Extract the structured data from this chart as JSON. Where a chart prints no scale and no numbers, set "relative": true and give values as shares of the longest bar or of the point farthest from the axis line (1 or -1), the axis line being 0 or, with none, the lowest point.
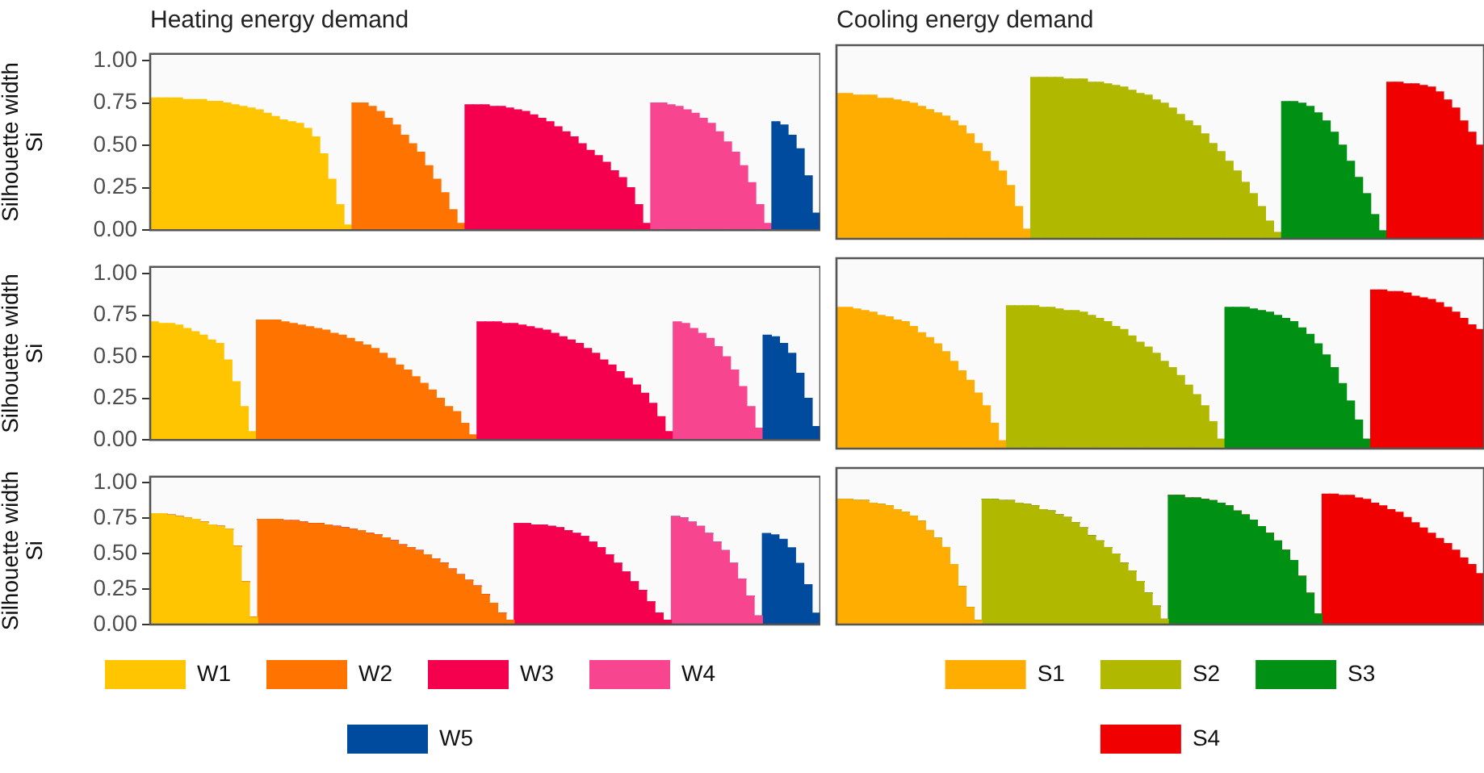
{
  "chart_data": [
    {
      "type": "bar",
      "title": "Heating energy demand",
      "ylabel": "Silhouette width\nSi",
      "tick_labels": "y",
      "ylim": [
        0,
        1.04
      ],
      "yticks": [
        {
          "value": 0,
          "label": "0.00"
        },
        {
          "value": 0.25,
          "label": "0.25"
        },
        {
          "value": 0.5,
          "label": "0.50"
        },
        {
          "value": 0.75,
          "label": "0.75"
        },
        {
          "value": 1,
          "label": "1.00"
        }
      ],
      "categories": [
        null,
        null,
        null,
        null,
        null,
        null,
        null,
        null,
        null,
        null,
        null,
        null,
        null,
        null,
        null,
        null,
        null,
        null,
        null,
        null,
        null,
        null,
        null,
        null,
        null,
        null,
        null,
        null,
        null,
        null,
        null,
        null,
        null,
        null,
        null,
        null,
        null,
        null,
        null,
        null,
        null,
        null,
        null,
        null,
        null,
        null,
        null,
        null,
        null,
        null,
        null,
        null,
        null,
        null,
        null,
        null,
        null,
        null,
        null,
        null,
        null,
        null,
        null,
        null,
        null,
        null,
        null,
        null,
        null,
        null,
        null,
        null,
        null,
        null,
        null,
        null,
        null,
        null,
        null,
        null,
        null,
        null,
        null
      ],
      "values": [
        0.78,
        0.78,
        0.78,
        0.78,
        0.77,
        0.77,
        0.77,
        0.76,
        0.76,
        0.75,
        0.74,
        0.73,
        0.72,
        0.71,
        0.69,
        0.67,
        0.65,
        0.64,
        0.63,
        0.6,
        0.55,
        0.45,
        0.3,
        0.15,
        0.03,
        0.75,
        0.75,
        0.73,
        0.7,
        0.66,
        0.62,
        0.56,
        0.51,
        0.46,
        0.38,
        0.3,
        0.22,
        0.12,
        0.04,
        0.74,
        0.74,
        0.74,
        0.73,
        0.73,
        0.72,
        0.71,
        0.7,
        0.68,
        0.66,
        0.64,
        0.61,
        0.58,
        0.55,
        0.51,
        0.47,
        0.44,
        0.4,
        0.35,
        0.31,
        0.25,
        0.15,
        0.04,
        0.75,
        0.75,
        0.74,
        0.73,
        0.71,
        0.69,
        0.66,
        0.63,
        0.58,
        0.52,
        0.46,
        0.38,
        0.28,
        0.15,
        0.04,
        0.64,
        0.62,
        0.56,
        0.48,
        0.32,
        0.1
      ],
      "colors": [
        "#ffc500",
        "#ffc500",
        "#ffc500",
        "#ffc500",
        "#ffc500",
        "#ffc500",
        "#ffc500",
        "#ffc500",
        "#ffc500",
        "#ffc500",
        "#ffc500",
        "#ffc500",
        "#ffc500",
        "#ffc500",
        "#ffc500",
        "#ffc500",
        "#ffc500",
        "#ffc500",
        "#ffc500",
        "#ffc500",
        "#ffc500",
        "#ffc500",
        "#ffc500",
        "#ffc500",
        "#ffc500",
        "#ff7400",
        "#ff7400",
        "#ff7400",
        "#ff7400",
        "#ff7400",
        "#ff7400",
        "#ff7400",
        "#ff7400",
        "#ff7400",
        "#ff7400",
        "#ff7400",
        "#ff7400",
        "#ff7400",
        "#ff7400",
        "#f5004f",
        "#f5004f",
        "#f5004f",
        "#f5004f",
        "#f5004f",
        "#f5004f",
        "#f5004f",
        "#f5004f",
        "#f5004f",
        "#f5004f",
        "#f5004f",
        "#f5004f",
        "#f5004f",
        "#f5004f",
        "#f5004f",
        "#f5004f",
        "#f5004f",
        "#f5004f",
        "#f5004f",
        "#f5004f",
        "#f5004f",
        "#f5004f",
        "#f5004f",
        "#f74590",
        "#f74590",
        "#f74590",
        "#f74590",
        "#f74590",
        "#f74590",
        "#f74590",
        "#f74590",
        "#f74590",
        "#f74590",
        "#f74590",
        "#f74590",
        "#f74590",
        "#f74590",
        "#f74590",
        "#004b9e",
        "#004b9e",
        "#004b9e",
        "#004b9e",
        "#004b9e",
        "#004b9e"
      ]
    },
    {
      "type": "bar",
      "title": "Cooling energy demand",
      "tick_labels": false,
      "relative": true,
      "categories": [
        null,
        null,
        null,
        null,
        null,
        null,
        null,
        null,
        null,
        null,
        null,
        null,
        null,
        null,
        null,
        null,
        null,
        null,
        null,
        null,
        null,
        null,
        null,
        null,
        null,
        null,
        null,
        null,
        null,
        null,
        null,
        null,
        null,
        null,
        null,
        null,
        null,
        null,
        null,
        null,
        null,
        null,
        null,
        null,
        null,
        null,
        null,
        null,
        null,
        null,
        null,
        null,
        null,
        null,
        null,
        null,
        null,
        null,
        null,
        null,
        null,
        null,
        null,
        null,
        null,
        null,
        null,
        null,
        null,
        null,
        null,
        null,
        null,
        null,
        null,
        null,
        null,
        null,
        null,
        null
      ],
      "values": [
        0.9,
        0.9,
        0.89,
        0.89,
        0.89,
        0.87,
        0.87,
        0.86,
        0.85,
        0.84,
        0.82,
        0.8,
        0.78,
        0.76,
        0.73,
        0.7,
        0.65,
        0.59,
        0.54,
        0.48,
        0.42,
        0.33,
        0.2,
        0.06,
        1,
        1,
        1,
        1,
        0.99,
        0.99,
        0.99,
        0.97,
        0.97,
        0.96,
        0.95,
        0.94,
        0.92,
        0.9,
        0.89,
        0.86,
        0.84,
        0.81,
        0.77,
        0.73,
        0.7,
        0.65,
        0.59,
        0.54,
        0.48,
        0.42,
        0.35,
        0.28,
        0.2,
        0.11,
        0.04,
        0.85,
        0.85,
        0.84,
        0.82,
        0.78,
        0.73,
        0.66,
        0.58,
        0.48,
        0.38,
        0.28,
        0.15,
        0.05,
        0.97,
        0.97,
        0.96,
        0.96,
        0.95,
        0.94,
        0.91,
        0.86,
        0.81,
        0.73,
        0.66,
        0.58
      ],
      "colors": [
        "#ffad00",
        "#ffad00",
        "#ffad00",
        "#ffad00",
        "#ffad00",
        "#ffad00",
        "#ffad00",
        "#ffad00",
        "#ffad00",
        "#ffad00",
        "#ffad00",
        "#ffad00",
        "#ffad00",
        "#ffad00",
        "#ffad00",
        "#ffad00",
        "#ffad00",
        "#ffad00",
        "#ffad00",
        "#ffad00",
        "#ffad00",
        "#ffad00",
        "#ffad00",
        "#ffad00",
        "#b0b800",
        "#b0b800",
        "#b0b800",
        "#b0b800",
        "#b0b800",
        "#b0b800",
        "#b0b800",
        "#b0b800",
        "#b0b800",
        "#b0b800",
        "#b0b800",
        "#b0b800",
        "#b0b800",
        "#b0b800",
        "#b0b800",
        "#b0b800",
        "#b0b800",
        "#b0b800",
        "#b0b800",
        "#b0b800",
        "#b0b800",
        "#b0b800",
        "#b0b800",
        "#b0b800",
        "#b0b800",
        "#b0b800",
        "#b0b800",
        "#b0b800",
        "#b0b800",
        "#b0b800",
        "#b0b800",
        "#009114",
        "#009114",
        "#009114",
        "#009114",
        "#009114",
        "#009114",
        "#009114",
        "#009114",
        "#009114",
        "#009114",
        "#009114",
        "#009114",
        "#009114",
        "#f00000",
        "#f00000",
        "#f00000",
        "#f00000",
        "#f00000",
        "#f00000",
        "#f00000",
        "#f00000",
        "#f00000",
        "#f00000",
        "#f00000",
        "#f00000"
      ]
    },
    {
      "type": "bar",
      "ylabel": "Silhouette width\nSi",
      "tick_labels": "y",
      "ylim": [
        0,
        1.04
      ],
      "yticks": [
        {
          "value": 0,
          "label": "0.00"
        },
        {
          "value": 0.25,
          "label": "0.25"
        },
        {
          "value": 0.5,
          "label": "0.50"
        },
        {
          "value": 0.75,
          "label": "0.75"
        },
        {
          "value": 1,
          "label": "1.00"
        }
      ],
      "categories": [
        null,
        null,
        null,
        null,
        null,
        null,
        null,
        null,
        null,
        null,
        null,
        null,
        null,
        null,
        null,
        null,
        null,
        null,
        null,
        null,
        null,
        null,
        null,
        null,
        null,
        null,
        null,
        null,
        null,
        null,
        null,
        null,
        null,
        null,
        null,
        null,
        null,
        null,
        null,
        null,
        null,
        null,
        null,
        null,
        null,
        null,
        null,
        null,
        null,
        null,
        null,
        null,
        null,
        null,
        null,
        null,
        null,
        null,
        null,
        null,
        null,
        null,
        null,
        null,
        null,
        null,
        null,
        null,
        null,
        null,
        null,
        null,
        null,
        null,
        null,
        null,
        null,
        null,
        null,
        null,
        null,
        null
      ],
      "values": [
        0.71,
        0.7,
        0.7,
        0.69,
        0.67,
        0.65,
        0.63,
        0.6,
        0.58,
        0.48,
        0.35,
        0.2,
        0.05,
        0.72,
        0.72,
        0.72,
        0.71,
        0.7,
        0.69,
        0.68,
        0.67,
        0.66,
        0.64,
        0.63,
        0.61,
        0.59,
        0.57,
        0.55,
        0.52,
        0.49,
        0.45,
        0.42,
        0.38,
        0.34,
        0.3,
        0.25,
        0.2,
        0.17,
        0.1,
        0.03,
        0.71,
        0.71,
        0.71,
        0.7,
        0.7,
        0.69,
        0.68,
        0.67,
        0.66,
        0.64,
        0.62,
        0.6,
        0.58,
        0.55,
        0.52,
        0.48,
        0.45,
        0.41,
        0.37,
        0.33,
        0.28,
        0.22,
        0.14,
        0.05,
        0.71,
        0.7,
        0.67,
        0.64,
        0.61,
        0.56,
        0.5,
        0.42,
        0.32,
        0.2,
        0.07,
        0.63,
        0.62,
        0.58,
        0.52,
        0.4,
        0.25,
        0.08
      ],
      "colors": [
        "#ffc500",
        "#ffc500",
        "#ffc500",
        "#ffc500",
        "#ffc500",
        "#ffc500",
        "#ffc500",
        "#ffc500",
        "#ffc500",
        "#ffc500",
        "#ffc500",
        "#ffc500",
        "#ffc500",
        "#ff7400",
        "#ff7400",
        "#ff7400",
        "#ff7400",
        "#ff7400",
        "#ff7400",
        "#ff7400",
        "#ff7400",
        "#ff7400",
        "#ff7400",
        "#ff7400",
        "#ff7400",
        "#ff7400",
        "#ff7400",
        "#ff7400",
        "#ff7400",
        "#ff7400",
        "#ff7400",
        "#ff7400",
        "#ff7400",
        "#ff7400",
        "#ff7400",
        "#ff7400",
        "#ff7400",
        "#ff7400",
        "#ff7400",
        "#ff7400",
        "#f5004f",
        "#f5004f",
        "#f5004f",
        "#f5004f",
        "#f5004f",
        "#f5004f",
        "#f5004f",
        "#f5004f",
        "#f5004f",
        "#f5004f",
        "#f5004f",
        "#f5004f",
        "#f5004f",
        "#f5004f",
        "#f5004f",
        "#f5004f",
        "#f5004f",
        "#f5004f",
        "#f5004f",
        "#f5004f",
        "#f5004f",
        "#f5004f",
        "#f5004f",
        "#f5004f",
        "#f74590",
        "#f74590",
        "#f74590",
        "#f74590",
        "#f74590",
        "#f74590",
        "#f74590",
        "#f74590",
        "#f74590",
        "#f74590",
        "#f74590",
        "#004b9e",
        "#004b9e",
        "#004b9e",
        "#004b9e",
        "#004b9e",
        "#004b9e",
        "#004b9e"
      ]
    },
    {
      "type": "bar",
      "tick_labels": false,
      "relative": true,
      "categories": [
        null,
        null,
        null,
        null,
        null,
        null,
        null,
        null,
        null,
        null,
        null,
        null,
        null,
        null,
        null,
        null,
        null,
        null,
        null,
        null,
        null,
        null,
        null,
        null,
        null,
        null,
        null,
        null,
        null,
        null,
        null,
        null,
        null,
        null,
        null,
        null,
        null,
        null,
        null,
        null,
        null,
        null,
        null,
        null,
        null,
        null,
        null,
        null,
        null,
        null,
        null,
        null,
        null,
        null,
        null,
        null,
        null,
        null,
        null,
        null,
        null,
        null,
        null,
        null,
        null,
        null,
        null,
        null,
        null,
        null,
        null,
        null,
        null,
        null,
        null,
        null,
        null,
        null,
        null,
        null
      ],
      "values": [
        0.89,
        0.89,
        0.88,
        0.87,
        0.86,
        0.84,
        0.83,
        0.81,
        0.8,
        0.77,
        0.73,
        0.7,
        0.66,
        0.61,
        0.55,
        0.49,
        0.43,
        0.35,
        0.27,
        0.16,
        0.05,
        0.9,
        0.9,
        0.9,
        0.9,
        0.89,
        0.89,
        0.88,
        0.87,
        0.87,
        0.86,
        0.84,
        0.82,
        0.8,
        0.77,
        0.75,
        0.71,
        0.67,
        0.64,
        0.6,
        0.55,
        0.51,
        0.46,
        0.4,
        0.34,
        0.27,
        0.17,
        0.06,
        0.89,
        0.89,
        0.89,
        0.88,
        0.87,
        0.86,
        0.84,
        0.82,
        0.8,
        0.76,
        0.72,
        0.66,
        0.59,
        0.51,
        0.41,
        0.3,
        0.18,
        0.06,
        1,
        1,
        0.99,
        0.99,
        0.98,
        0.96,
        0.95,
        0.94,
        0.92,
        0.89,
        0.86,
        0.82,
        0.78,
        0.75
      ],
      "colors": [
        "#ffad00",
        "#ffad00",
        "#ffad00",
        "#ffad00",
        "#ffad00",
        "#ffad00",
        "#ffad00",
        "#ffad00",
        "#ffad00",
        "#ffad00",
        "#ffad00",
        "#ffad00",
        "#ffad00",
        "#ffad00",
        "#ffad00",
        "#ffad00",
        "#ffad00",
        "#ffad00",
        "#ffad00",
        "#ffad00",
        "#ffad00",
        "#b0b800",
        "#b0b800",
        "#b0b800",
        "#b0b800",
        "#b0b800",
        "#b0b800",
        "#b0b800",
        "#b0b800",
        "#b0b800",
        "#b0b800",
        "#b0b800",
        "#b0b800",
        "#b0b800",
        "#b0b800",
        "#b0b800",
        "#b0b800",
        "#b0b800",
        "#b0b800",
        "#b0b800",
        "#b0b800",
        "#b0b800",
        "#b0b800",
        "#b0b800",
        "#b0b800",
        "#b0b800",
        "#b0b800",
        "#b0b800",
        "#009114",
        "#009114",
        "#009114",
        "#009114",
        "#009114",
        "#009114",
        "#009114",
        "#009114",
        "#009114",
        "#009114",
        "#009114",
        "#009114",
        "#009114",
        "#009114",
        "#009114",
        "#009114",
        "#009114",
        "#009114",
        "#f00000",
        "#f00000",
        "#f00000",
        "#f00000",
        "#f00000",
        "#f00000",
        "#f00000",
        "#f00000",
        "#f00000",
        "#f00000",
        "#f00000",
        "#f00000",
        "#f00000",
        "#f00000"
      ]
    },
    {
      "type": "bar",
      "ylabel": "Silhouette width\nSi",
      "tick_labels": "y",
      "legend": "bottom",
      "stacked": true,
      "ylim": [
        0,
        1.04
      ],
      "yticks": [
        {
          "value": 0,
          "label": "0.00"
        },
        {
          "value": 0.25,
          "label": "0.25"
        },
        {
          "value": 0.5,
          "label": "0.50"
        },
        {
          "value": 0.75,
          "label": "0.75"
        },
        {
          "value": 1,
          "label": "1.00"
        }
      ],
      "categories": [
        null,
        null,
        null,
        null,
        null,
        null,
        null,
        null,
        null,
        null,
        null,
        null,
        null,
        null,
        null,
        null,
        null,
        null,
        null,
        null,
        null,
        null,
        null,
        null,
        null,
        null,
        null,
        null,
        null,
        null,
        null,
        null,
        null,
        null,
        null,
        null,
        null,
        null,
        null,
        null,
        null,
        null,
        null,
        null,
        null,
        null,
        null,
        null,
        null,
        null,
        null,
        null,
        null,
        null,
        null,
        null,
        null,
        null,
        null,
        null,
        null,
        null,
        null,
        null,
        null,
        null,
        null,
        null,
        null,
        null,
        null,
        null,
        null,
        null,
        null,
        null,
        null,
        null,
        null,
        null,
        null
      ],
      "series": [
        {
          "name": "W1",
          "color": "#ffc500",
          "values": [
            0.78,
            0.78,
            0.77,
            0.76,
            0.75,
            0.74,
            0.72,
            0.7,
            0.69,
            0.67,
            0.55,
            0.3,
            0.05,
            0,
            0,
            0,
            0,
            0,
            0,
            0,
            0,
            0,
            0,
            0,
            0,
            0,
            0,
            0,
            0,
            0,
            0,
            0,
            0,
            0,
            0,
            0,
            0,
            0,
            0,
            0,
            0,
            0,
            0,
            0,
            0,
            0,
            0,
            0,
            0,
            0,
            0,
            0,
            0,
            0,
            0,
            0,
            0,
            0,
            0,
            0,
            0,
            0,
            0,
            0,
            0,
            0,
            0,
            0,
            0,
            0,
            0,
            0,
            0,
            0,
            0,
            0,
            0,
            0,
            0,
            0,
            0
          ]
        },
        {
          "name": "W2",
          "color": "#ff7400",
          "values": [
            0,
            0,
            0,
            0,
            0,
            0,
            0,
            0,
            0,
            0,
            0,
            0,
            0,
            0.74,
            0.74,
            0.74,
            0.73,
            0.73,
            0.72,
            0.71,
            0.71,
            0.7,
            0.69,
            0.68,
            0.67,
            0.66,
            0.64,
            0.63,
            0.61,
            0.59,
            0.56,
            0.54,
            0.52,
            0.49,
            0.46,
            0.43,
            0.39,
            0.35,
            0.31,
            0.27,
            0.21,
            0.15,
            0.08,
            0.03,
            0,
            0,
            0,
            0,
            0,
            0,
            0,
            0,
            0,
            0,
            0,
            0,
            0,
            0,
            0,
            0,
            0,
            0,
            0,
            0,
            0,
            0,
            0,
            0,
            0,
            0,
            0,
            0,
            0,
            0,
            0,
            0,
            0,
            0,
            0,
            0,
            0
          ]
        },
        {
          "name": "W3",
          "color": "#f5004f",
          "values": [
            0,
            0,
            0,
            0,
            0,
            0,
            0,
            0,
            0,
            0,
            0,
            0,
            0,
            0,
            0,
            0,
            0,
            0,
            0,
            0,
            0,
            0,
            0,
            0,
            0,
            0,
            0,
            0,
            0,
            0,
            0,
            0,
            0,
            0,
            0,
            0,
            0,
            0,
            0,
            0,
            0,
            0,
            0,
            0,
            0.71,
            0.71,
            0.7,
            0.7,
            0.69,
            0.68,
            0.66,
            0.64,
            0.62,
            0.58,
            0.54,
            0.49,
            0.43,
            0.37,
            0.3,
            0.24,
            0.16,
            0.08,
            0.03,
            0,
            0,
            0,
            0,
            0,
            0,
            0,
            0,
            0,
            0,
            0,
            0,
            0,
            0,
            0,
            0,
            0,
            0
          ]
        },
        {
          "name": "W4",
          "color": "#f74590",
          "values": [
            0,
            0,
            0,
            0,
            0,
            0,
            0,
            0,
            0,
            0,
            0,
            0,
            0,
            0,
            0,
            0,
            0,
            0,
            0,
            0,
            0,
            0,
            0,
            0,
            0,
            0,
            0,
            0,
            0,
            0,
            0,
            0,
            0,
            0,
            0,
            0,
            0,
            0,
            0,
            0,
            0,
            0,
            0,
            0,
            0,
            0,
            0,
            0,
            0,
            0,
            0,
            0,
            0,
            0,
            0,
            0,
            0,
            0,
            0,
            0,
            0,
            0,
            0,
            0.76,
            0.75,
            0.72,
            0.69,
            0.64,
            0.58,
            0.52,
            0.43,
            0.32,
            0.2,
            0.06,
            0,
            0,
            0,
            0,
            0,
            0,
            0
          ]
        },
        {
          "name": "W5",
          "color": "#004b9e",
          "values": [
            0,
            0,
            0,
            0,
            0,
            0,
            0,
            0,
            0,
            0,
            0,
            0,
            0,
            0,
            0,
            0,
            0,
            0,
            0,
            0,
            0,
            0,
            0,
            0,
            0,
            0,
            0,
            0,
            0,
            0,
            0,
            0,
            0,
            0,
            0,
            0,
            0,
            0,
            0,
            0,
            0,
            0,
            0,
            0,
            0,
            0,
            0,
            0,
            0,
            0,
            0,
            0,
            0,
            0,
            0,
            0,
            0,
            0,
            0,
            0,
            0,
            0,
            0,
            0,
            0,
            0,
            0,
            0,
            0,
            0,
            0,
            0,
            0,
            0,
            0.64,
            0.63,
            0.6,
            0.54,
            0.43,
            0.28,
            0.08
          ]
        }
      ]
    },
    {
      "type": "bar",
      "tick_labels": false,
      "legend": "bottom",
      "stacked": true,
      "relative": true,
      "categories": [
        null,
        null,
        null,
        null,
        null,
        null,
        null,
        null,
        null,
        null,
        null,
        null,
        null,
        null,
        null,
        null,
        null,
        null,
        null,
        null,
        null,
        null,
        null,
        null,
        null,
        null,
        null,
        null,
        null,
        null,
        null,
        null,
        null,
        null,
        null,
        null,
        null,
        null,
        null,
        null,
        null,
        null,
        null,
        null,
        null,
        null,
        null,
        null,
        null,
        null,
        null,
        null,
        null,
        null,
        null,
        null,
        null,
        null,
        null,
        null,
        null,
        null,
        null,
        null,
        null,
        null,
        null,
        null,
        null,
        null,
        null,
        null,
        null,
        null,
        null,
        null,
        null,
        null,
        null,
        null
      ],
      "series": [
        {
          "name": "S1",
          "color": "#ffad00",
          "values": [
            0.96,
            0.96,
            0.95,
            0.95,
            0.93,
            0.92,
            0.91,
            0.88,
            0.86,
            0.83,
            0.79,
            0.72,
            0.66,
            0.59,
            0.46,
            0.29,
            0.13,
            0.03,
            0,
            0,
            0,
            0,
            0,
            0,
            0,
            0,
            0,
            0,
            0,
            0,
            0,
            0,
            0,
            0,
            0,
            0,
            0,
            0,
            0,
            0,
            0,
            0,
            0,
            0,
            0,
            0,
            0,
            0,
            0,
            0,
            0,
            0,
            0,
            0,
            0,
            0,
            0,
            0,
            0,
            0,
            0,
            0,
            0,
            0,
            0,
            0,
            0,
            0,
            0,
            0,
            0,
            0,
            0,
            0,
            0,
            0,
            0,
            0,
            0,
            0
          ]
        },
        {
          "name": "S2",
          "color": "#b0b800",
          "values": [
            0,
            0,
            0,
            0,
            0,
            0,
            0,
            0,
            0,
            0,
            0,
            0,
            0,
            0,
            0,
            0,
            0,
            0,
            0.96,
            0.96,
            0.95,
            0.95,
            0.93,
            0.92,
            0.91,
            0.88,
            0.87,
            0.84,
            0.82,
            0.78,
            0.74,
            0.68,
            0.64,
            0.59,
            0.54,
            0.47,
            0.41,
            0.33,
            0.24,
            0.14,
            0.04,
            0,
            0,
            0,
            0,
            0,
            0,
            0,
            0,
            0,
            0,
            0,
            0,
            0,
            0,
            0,
            0,
            0,
            0,
            0,
            0,
            0,
            0,
            0,
            0,
            0,
            0,
            0,
            0,
            0,
            0,
            0,
            0,
            0,
            0,
            0,
            0,
            0,
            0,
            0
          ]
        },
        {
          "name": "S3",
          "color": "#009114",
          "values": [
            0,
            0,
            0,
            0,
            0,
            0,
            0,
            0,
            0,
            0,
            0,
            0,
            0,
            0,
            0,
            0,
            0,
            0,
            0,
            0,
            0,
            0,
            0,
            0,
            0,
            0,
            0,
            0,
            0,
            0,
            0,
            0,
            0,
            0,
            0,
            0,
            0,
            0,
            0,
            0,
            0,
            0.99,
            0.99,
            0.97,
            0.97,
            0.96,
            0.95,
            0.93,
            0.91,
            0.87,
            0.84,
            0.8,
            0.75,
            0.7,
            0.64,
            0.57,
            0.49,
            0.37,
            0.24,
            0.08,
            0,
            0,
            0,
            0,
            0,
            0,
            0,
            0,
            0,
            0,
            0,
            0,
            0,
            0,
            0,
            0,
            0,
            0,
            0,
            0
          ]
        },
        {
          "name": "S4",
          "color": "#f00000",
          "values": [
            0,
            0,
            0,
            0,
            0,
            0,
            0,
            0,
            0,
            0,
            0,
            0,
            0,
            0,
            0,
            0,
            0,
            0,
            0,
            0,
            0,
            0,
            0,
            0,
            0,
            0,
            0,
            0,
            0,
            0,
            0,
            0,
            0,
            0,
            0,
            0,
            0,
            0,
            0,
            0,
            0,
            0,
            0,
            0,
            0,
            0,
            0,
            0,
            0,
            0,
            0,
            0,
            0,
            0,
            0,
            0,
            0,
            0,
            0,
            0,
            1,
            1,
            0.99,
            0.99,
            0.97,
            0.96,
            0.93,
            0.91,
            0.88,
            0.86,
            0.82,
            0.78,
            0.74,
            0.7,
            0.66,
            0.62,
            0.57,
            0.51,
            0.46,
            0.39
          ]
        }
      ]
    }
  ]
}
